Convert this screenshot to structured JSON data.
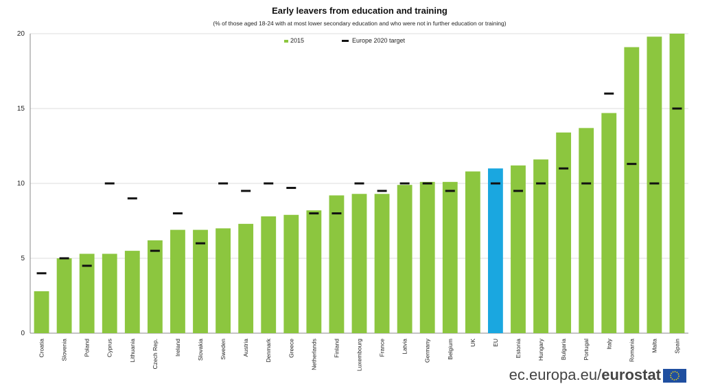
{
  "chart_data": {
    "type": "bar",
    "title": "Early leavers  from education and training",
    "subtitle": "(% of those aged 18-24 with at most lower secondary education and who were not in further education or training)",
    "ylim": [
      0,
      20
    ],
    "yticks": [
      0,
      5,
      10,
      15,
      20
    ],
    "grid": true,
    "legend": {
      "position": "top-center",
      "entries": [
        "2015",
        "Europe 2020 target"
      ]
    },
    "categories": [
      "Croatia",
      "Slovenia",
      "Poland",
      "Cyprus",
      "Lithuania",
      "Czech Rep.",
      "Ireland",
      "Slovakia",
      "Sweden",
      "Austria",
      "Denmark",
      "Greece",
      "Netherlands",
      "Finland",
      "Luxembourg",
      "France",
      "Latvia",
      "Germany",
      "Belgium",
      "UK",
      "EU",
      "Estonia",
      "Hungary",
      "Bulgaria",
      "Portugal",
      "Italy",
      "Romania",
      "Malta",
      "Spain"
    ],
    "series": [
      {
        "name": "2015",
        "values": [
          2.8,
          5.0,
          5.3,
          5.3,
          5.5,
          6.2,
          6.9,
          6.9,
          7.0,
          7.3,
          7.8,
          7.9,
          8.2,
          9.2,
          9.3,
          9.3,
          9.9,
          10.1,
          10.1,
          10.8,
          11.0,
          11.2,
          11.6,
          13.4,
          13.7,
          14.7,
          19.1,
          19.8,
          20.0
        ]
      },
      {
        "name": "Europe 2020 target",
        "values": [
          4.0,
          5.0,
          4.5,
          10.0,
          9.0,
          5.5,
          8.0,
          6.0,
          10.0,
          9.5,
          10.0,
          9.7,
          8.0,
          8.0,
          10.0,
          9.5,
          10.0,
          10.0,
          9.5,
          null,
          10.0,
          9.5,
          10.0,
          11.0,
          10.0,
          16.0,
          11.3,
          10.0,
          15.0
        ]
      }
    ],
    "highlight_category": "EU"
  },
  "colors": {
    "bar": "#8cc63f",
    "highlight": "#1aa7e0",
    "target": "#111111",
    "grid": "#dddddd",
    "flag": "#1f4fa0",
    "flag_stars": "#ffdd00"
  },
  "footer": {
    "site": "ec.europa.eu/",
    "brand": "eurostat"
  }
}
